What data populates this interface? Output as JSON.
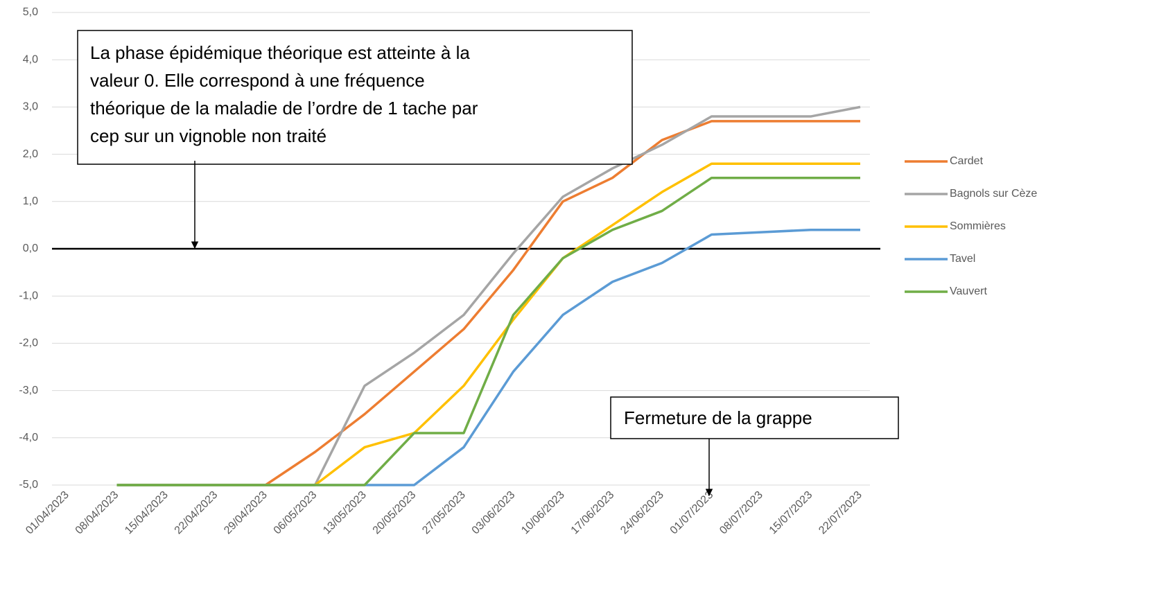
{
  "chart_data": {
    "type": "line",
    "categories": [
      "01/04/2023",
      "08/04/2023",
      "15/04/2023",
      "22/04/2023",
      "29/04/2023",
      "06/05/2023",
      "13/05/2023",
      "20/05/2023",
      "27/05/2023",
      "03/06/2023",
      "10/06/2023",
      "17/06/2023",
      "24/06/2023",
      "01/07/2023",
      "08/07/2023",
      "15/07/2023",
      "22/07/2023"
    ],
    "series": [
      {
        "name": "Cardet",
        "color": "#ed7d31",
        "values": [
          null,
          -5,
          -5,
          -5,
          -5,
          -4.3,
          -3.5,
          -2.6,
          -1.7,
          -0.45,
          1.0,
          1.5,
          2.3,
          2.7,
          2.7,
          2.7,
          2.7
        ]
      },
      {
        "name": "Bagnols sur Cèze",
        "color": "#a5a5a5",
        "values": [
          null,
          -5,
          -5,
          -5,
          -5,
          -5,
          -2.9,
          -2.2,
          -1.4,
          -0.1,
          1.1,
          1.7,
          2.2,
          2.8,
          2.8,
          2.8,
          3.0
        ]
      },
      {
        "name": "Sommières",
        "color": "#ffc000",
        "values": [
          null,
          -5,
          -5,
          -5,
          -5,
          -5,
          -4.2,
          -3.9,
          -2.9,
          -1.5,
          -0.2,
          0.5,
          1.2,
          1.8,
          1.8,
          1.8,
          1.8
        ]
      },
      {
        "name": "Tavel",
        "color": "#5b9bd5",
        "values": [
          null,
          -5,
          -5,
          -5,
          -5,
          -5,
          -5,
          -5,
          -4.2,
          -2.6,
          -1.4,
          -0.7,
          -0.3,
          0.3,
          0.35,
          0.4,
          0.4
        ]
      },
      {
        "name": "Vauvert",
        "color": "#70ad47",
        "values": [
          null,
          -5,
          -5,
          -5,
          -5,
          -5,
          -5,
          -3.9,
          -3.9,
          -1.4,
          -0.2,
          0.4,
          0.8,
          1.5,
          1.5,
          1.5,
          1.5
        ]
      }
    ],
    "ylim": [
      -5,
      5
    ],
    "yticks": [
      {
        "value": -5,
        "label": "-5,0"
      },
      {
        "value": -4,
        "label": "-4,0"
      },
      {
        "value": -3,
        "label": "-3,0"
      },
      {
        "value": -2,
        "label": "-2,0"
      },
      {
        "value": -1,
        "label": "-1,0"
      },
      {
        "value": 0,
        "label": "0,0"
      },
      {
        "value": 1,
        "label": "1,0"
      },
      {
        "value": 2,
        "label": "2,0"
      },
      {
        "value": 3,
        "label": "3,0"
      },
      {
        "value": 4,
        "label": "4,0"
      },
      {
        "value": 5,
        "label": "5,0"
      }
    ],
    "grid": true,
    "annotations": [
      [
        "La phase épidémique théorique est atteinte à la",
        "valeur 0. Elle correspond à une fréquence",
        "théorique de la maladie de l’ordre de 1 tache par",
        "cep sur un vignoble non traité"
      ],
      [
        "Fermeture de la grappe"
      ]
    ]
  }
}
